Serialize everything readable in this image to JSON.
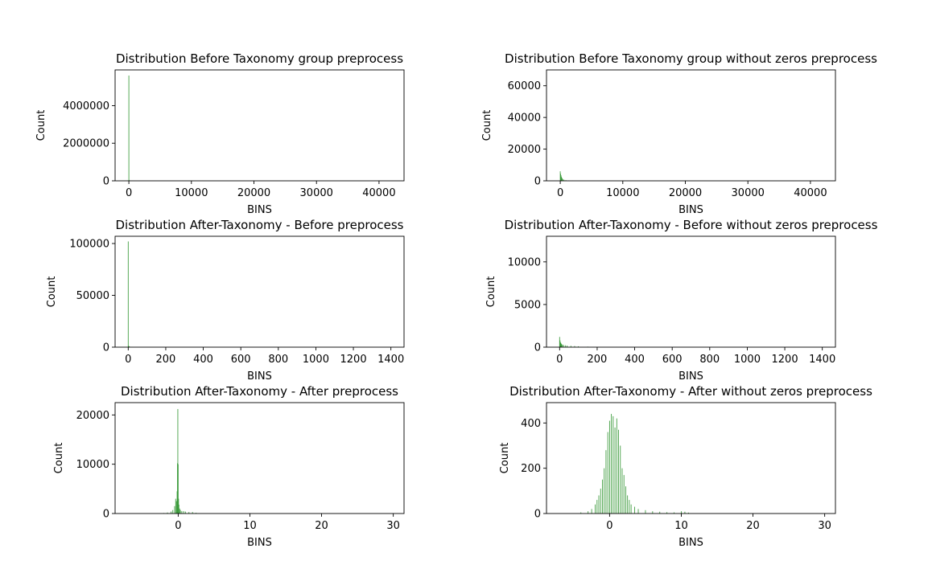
{
  "chart_data": [
    {
      "type": "bar",
      "title": "Distribution Before Taxonomy group preprocess",
      "xlabel": "BINS",
      "ylabel": "Count",
      "xlim": [
        -2200,
        44000
      ],
      "ylim": [
        0,
        5900000
      ],
      "xticks": [
        0,
        10000,
        20000,
        30000,
        40000
      ],
      "yticks": [
        0,
        2000000,
        4000000
      ],
      "color": "#3a9a3a",
      "x": [
        0,
        60,
        150,
        400,
        900,
        2000
      ],
      "values": [
        5600000,
        30000,
        10000,
        4000,
        1500,
        500
      ]
    },
    {
      "type": "bar",
      "title": "Distribution Before Taxonomy group without zeros preprocess",
      "xlabel": "BINS",
      "ylabel": "Count",
      "xlim": [
        -2200,
        44000
      ],
      "ylim": [
        0,
        70000
      ],
      "xticks": [
        0,
        10000,
        20000,
        30000,
        40000
      ],
      "yticks": [
        0,
        20000,
        40000,
        60000
      ],
      "color": "#3a9a3a",
      "x": [
        0,
        60,
        120,
        180,
        240,
        300,
        400,
        600,
        900,
        1300,
        2000
      ],
      "values": [
        6000,
        4500,
        3500,
        2600,
        2000,
        1500,
        1100,
        700,
        400,
        200,
        80
      ]
    },
    {
      "type": "bar",
      "title": "Distribution After-Taxonomy - Before preprocess",
      "xlabel": "BINS",
      "ylabel": "Count",
      "xlim": [
        -70,
        1470
      ],
      "ylim": [
        0,
        107000
      ],
      "xticks": [
        0,
        200,
        400,
        600,
        800,
        1000,
        1200,
        1400
      ],
      "yticks": [
        0,
        50000,
        100000
      ],
      "color": "#3a9a3a",
      "x": [
        0,
        2,
        4,
        6,
        8,
        10,
        14,
        20,
        30
      ],
      "values": [
        102000,
        1200,
        800,
        500,
        300,
        200,
        120,
        80,
        40
      ]
    },
    {
      "type": "bar",
      "title": "Distribution After-Taxonomy - Before without zeros preprocess",
      "xlabel": "BINS",
      "ylabel": "Count",
      "xlim": [
        -70,
        1470
      ],
      "ylim": [
        0,
        13000
      ],
      "xticks": [
        0,
        200,
        400,
        600,
        800,
        1000,
        1200,
        1400
      ],
      "yticks": [
        0,
        5000,
        10000
      ],
      "color": "#3a9a3a",
      "x": [
        0,
        2,
        4,
        6,
        8,
        10,
        15,
        20,
        30,
        40,
        60,
        80,
        100,
        150,
        200,
        300
      ],
      "values": [
        1200,
        800,
        600,
        500,
        420,
        350,
        300,
        260,
        220,
        190,
        160,
        130,
        100,
        60,
        30,
        10
      ]
    },
    {
      "type": "bar",
      "title": "Distribution After-Taxonomy - After preprocess",
      "xlabel": "BINS",
      "ylabel": "Count",
      "xlim": [
        -8.8,
        31.5
      ],
      "ylim": [
        0,
        22500
      ],
      "xticks": [
        0,
        10,
        20,
        30
      ],
      "yticks": [
        0,
        10000,
        20000
      ],
      "color": "#3a9a3a",
      "x": [
        -2.0,
        -1.5,
        -1.0,
        -0.75,
        -0.5,
        -0.35,
        -0.25,
        -0.15,
        -0.1,
        -0.05,
        0.0,
        0.05,
        0.1,
        0.2,
        0.3,
        0.5,
        0.75,
        1.0,
        1.5,
        2.0,
        2.5
      ],
      "values": [
        100,
        200,
        400,
        700,
        1500,
        3000,
        2500,
        4500,
        10200,
        21200,
        10000,
        3000,
        1800,
        1000,
        700,
        500,
        500,
        400,
        300,
        300,
        150
      ]
    },
    {
      "type": "bar",
      "title": "Distribution After-Taxonomy - After without zeros preprocess",
      "xlabel": "BINS",
      "ylabel": "Count",
      "xlim": [
        -8.8,
        31.5
      ],
      "ylim": [
        0,
        490
      ],
      "xticks": [
        0,
        10,
        20,
        30
      ],
      "yticks": [
        0,
        200,
        400
      ],
      "color": "#3a9a3a",
      "x": [
        -4.0,
        -3.0,
        -2.5,
        -2.0,
        -1.75,
        -1.5,
        -1.25,
        -1.0,
        -0.75,
        -0.5,
        -0.25,
        0.0,
        0.25,
        0.5,
        0.75,
        1.0,
        1.25,
        1.5,
        1.75,
        2.0,
        2.25,
        2.5,
        2.75,
        3.0,
        3.5,
        4.0,
        5.0,
        6.0,
        7.0,
        8.0,
        9.0,
        10.0,
        10.5,
        11.0
      ],
      "values": [
        5,
        10,
        20,
        40,
        60,
        80,
        110,
        150,
        200,
        280,
        360,
        410,
        440,
        430,
        380,
        420,
        370,
        300,
        200,
        170,
        120,
        80,
        60,
        40,
        30,
        20,
        15,
        10,
        8,
        6,
        5,
        10,
        8,
        4
      ]
    }
  ]
}
